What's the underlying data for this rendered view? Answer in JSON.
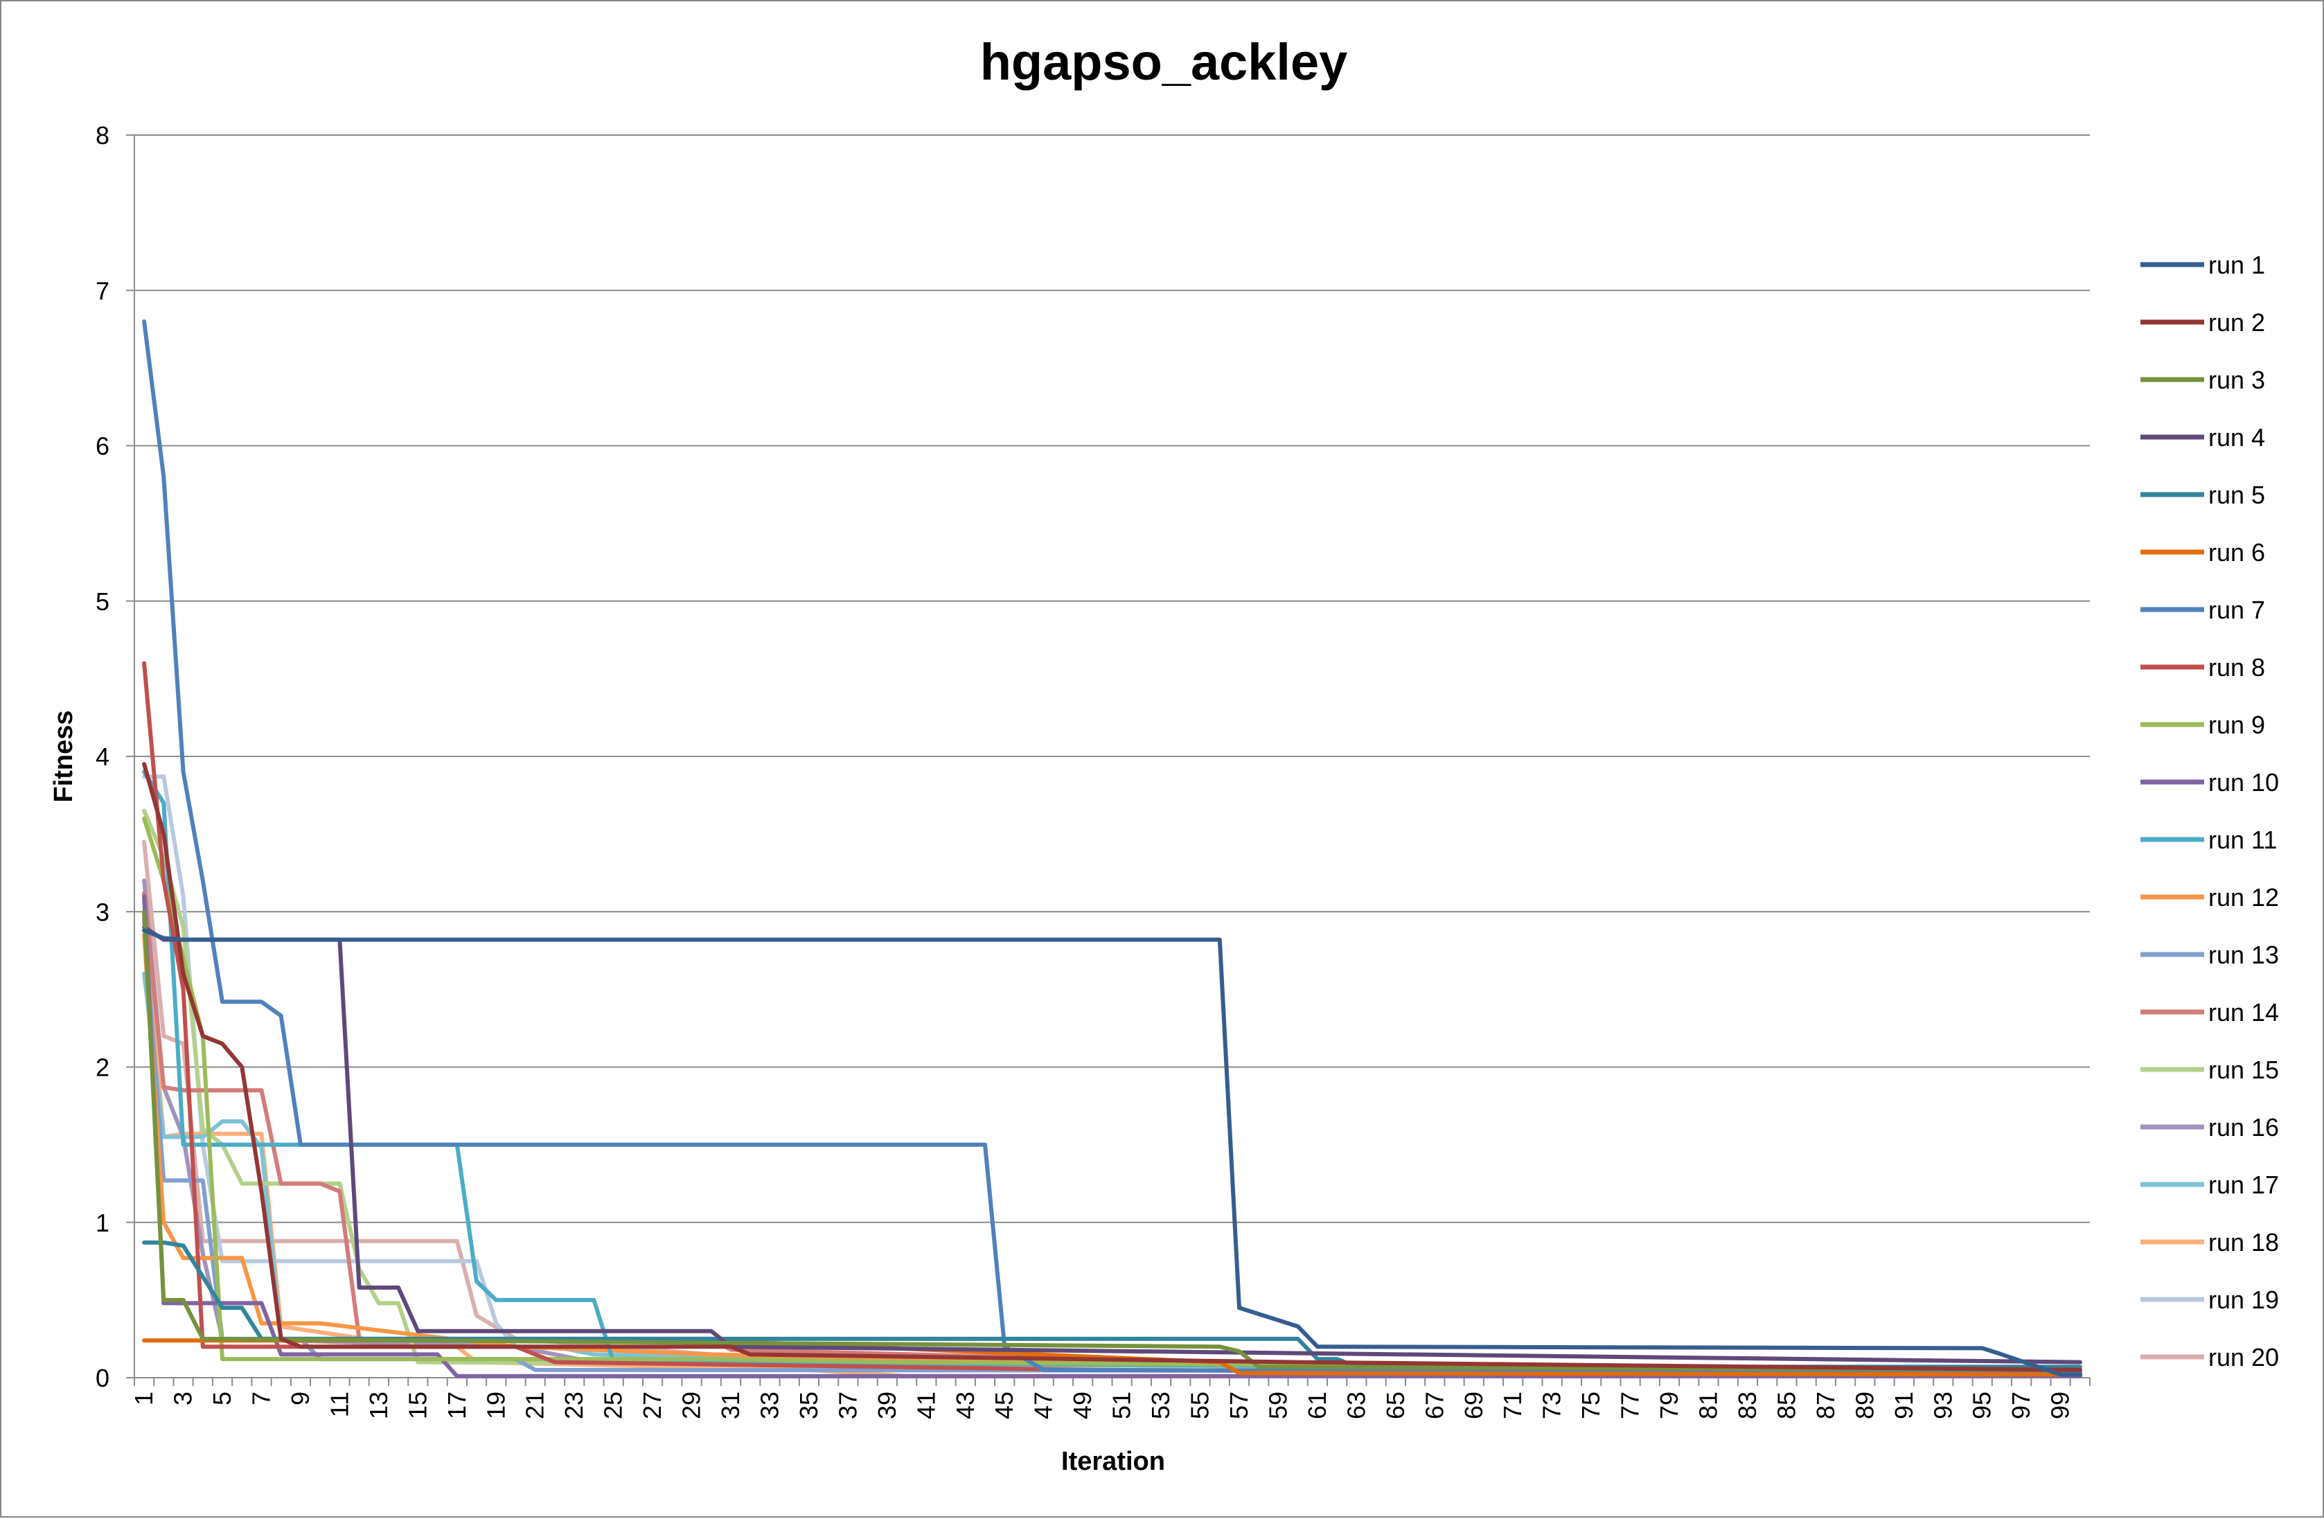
{
  "chart_data": {
    "type": "line",
    "title": "hgapso_ackley",
    "xlabel": "Iteration",
    "ylabel": "Fitness",
    "xlim": [
      1,
      100
    ],
    "ylim": [
      0,
      8
    ],
    "yticks": [
      "0",
      "1",
      "2",
      "3",
      "4",
      "5",
      "6",
      "7",
      "8"
    ],
    "xtick_labels": [
      "1",
      "3",
      "5",
      "7",
      "9",
      "11",
      "13",
      "15",
      "17",
      "19",
      "21",
      "23",
      "25",
      "27",
      "29",
      "31",
      "33",
      "35",
      "37",
      "39",
      "41",
      "43",
      "45",
      "47",
      "49",
      "51",
      "53",
      "55",
      "57",
      "59",
      "61",
      "63",
      "65",
      "67",
      "69",
      "71",
      "73",
      "75",
      "77",
      "79",
      "81",
      "83",
      "85",
      "87",
      "89",
      "91",
      "93",
      "95",
      "97",
      "99"
    ],
    "grid": true,
    "legend_position": "right",
    "series": [
      {
        "name": "run 1",
        "color": "#355e8f",
        "points": [
          [
            1,
            2.88
          ],
          [
            2,
            2.83
          ],
          [
            3,
            2.82
          ],
          [
            35,
            2.82
          ],
          [
            56,
            2.82
          ],
          [
            57,
            0.45
          ],
          [
            60,
            0.33
          ],
          [
            61,
            0.2
          ],
          [
            95,
            0.19
          ],
          [
            96,
            0.15
          ],
          [
            99,
            0.02
          ],
          [
            100,
            0.02
          ]
        ]
      },
      {
        "name": "run 2",
        "color": "#943634",
        "points": [
          [
            1,
            3.95
          ],
          [
            2,
            3.5
          ],
          [
            3,
            2.6
          ],
          [
            4,
            2.2
          ],
          [
            5,
            2.15
          ],
          [
            6,
            2.0
          ],
          [
            7,
            1.2
          ],
          [
            8,
            0.25
          ],
          [
            9,
            0.2
          ],
          [
            31,
            0.2
          ],
          [
            32,
            0.15
          ],
          [
            60,
            0.1
          ],
          [
            100,
            0.05
          ]
        ]
      },
      {
        "name": "run 3",
        "color": "#76923c",
        "points": [
          [
            1,
            3.0
          ],
          [
            2,
            0.5
          ],
          [
            3,
            0.5
          ],
          [
            4,
            0.25
          ],
          [
            56,
            0.2
          ],
          [
            57,
            0.17
          ],
          [
            58,
            0.07
          ],
          [
            100,
            0.05
          ]
        ]
      },
      {
        "name": "run 4",
        "color": "#5f497a",
        "points": [
          [
            1,
            2.9
          ],
          [
            2,
            2.82
          ],
          [
            10,
            2.82
          ],
          [
            11,
            2.82
          ],
          [
            12,
            0.58
          ],
          [
            14,
            0.58
          ],
          [
            15,
            0.3
          ],
          [
            30,
            0.3
          ],
          [
            31,
            0.2
          ],
          [
            100,
            0.1
          ]
        ]
      },
      {
        "name": "run 5",
        "color": "#31859c",
        "points": [
          [
            1,
            0.87
          ],
          [
            2,
            0.87
          ],
          [
            3,
            0.85
          ],
          [
            5,
            0.45
          ],
          [
            6,
            0.45
          ],
          [
            7,
            0.25
          ],
          [
            60,
            0.25
          ],
          [
            61,
            0.12
          ],
          [
            62,
            0.12
          ],
          [
            63,
            0.07
          ],
          [
            100,
            0.07
          ]
        ]
      },
      {
        "name": "run 6",
        "color": "#e36c09",
        "points": [
          [
            1,
            0.24
          ],
          [
            3,
            0.24
          ],
          [
            30,
            0.24
          ],
          [
            56,
            0.1
          ],
          [
            57,
            0.03
          ],
          [
            100,
            0.02
          ]
        ]
      },
      {
        "name": "run 7",
        "color": "#4f81bd",
        "points": [
          [
            1,
            6.8
          ],
          [
            2,
            5.8
          ],
          [
            3,
            3.9
          ],
          [
            4,
            3.2
          ],
          [
            5,
            2.42
          ],
          [
            6,
            2.42
          ],
          [
            7,
            2.42
          ],
          [
            8,
            2.33
          ],
          [
            9,
            1.5
          ],
          [
            10,
            1.5
          ],
          [
            44,
            1.5
          ],
          [
            45,
            0.2
          ],
          [
            47,
            0.05
          ],
          [
            100,
            0.03
          ]
        ]
      },
      {
        "name": "run 8",
        "color": "#c0504d",
        "points": [
          [
            1,
            4.6
          ],
          [
            2,
            3.2
          ],
          [
            3,
            2.5
          ],
          [
            4,
            0.2
          ],
          [
            5,
            0.2
          ],
          [
            10,
            0.2
          ],
          [
            20,
            0.2
          ],
          [
            22,
            0.1
          ],
          [
            50,
            0.05
          ],
          [
            100,
            0.02
          ]
        ]
      },
      {
        "name": "run 9",
        "color": "#9bbb59",
        "points": [
          [
            1,
            3.6
          ],
          [
            2,
            3.2
          ],
          [
            3,
            2.7
          ],
          [
            4,
            2.2
          ],
          [
            5,
            0.12
          ],
          [
            30,
            0.12
          ],
          [
            40,
            0.1
          ],
          [
            100,
            0.05
          ]
        ]
      },
      {
        "name": "run 10",
        "color": "#8064a2",
        "points": [
          [
            1,
            3.1
          ],
          [
            2,
            0.48
          ],
          [
            6,
            0.48
          ],
          [
            7,
            0.48
          ],
          [
            8,
            0.15
          ],
          [
            16,
            0.15
          ],
          [
            17,
            0.01
          ],
          [
            100,
            0.01
          ]
        ]
      },
      {
        "name": "run 11",
        "color": "#4bacc6",
        "points": [
          [
            1,
            3.9
          ],
          [
            2,
            3.7
          ],
          [
            3,
            1.5
          ],
          [
            16,
            1.5
          ],
          [
            17,
            1.5
          ],
          [
            18,
            0.62
          ],
          [
            19,
            0.5
          ],
          [
            23,
            0.5
          ],
          [
            24,
            0.5
          ],
          [
            25,
            0.1
          ],
          [
            100,
            0.05
          ]
        ]
      },
      {
        "name": "run 12",
        "color": "#f79646",
        "points": [
          [
            1,
            2.85
          ],
          [
            2,
            1.0
          ],
          [
            3,
            0.77
          ],
          [
            5,
            0.77
          ],
          [
            6,
            0.77
          ],
          [
            7,
            0.35
          ],
          [
            10,
            0.35
          ],
          [
            20,
            0.2
          ],
          [
            30,
            0.15
          ],
          [
            45,
            0.1
          ],
          [
            100,
            0.05
          ]
        ]
      },
      {
        "name": "run 13",
        "color": "#7f9fcf",
        "points": [
          [
            1,
            2.95
          ],
          [
            2,
            1.27
          ],
          [
            4,
            1.27
          ],
          [
            5,
            0.25
          ],
          [
            9,
            0.25
          ],
          [
            10,
            0.12
          ],
          [
            20,
            0.12
          ],
          [
            21,
            0.05
          ],
          [
            100,
            0.04
          ]
        ]
      },
      {
        "name": "run 14",
        "color": "#d37c7a",
        "points": [
          [
            1,
            3.12
          ],
          [
            2,
            1.87
          ],
          [
            3,
            1.85
          ],
          [
            7,
            1.85
          ],
          [
            8,
            1.25
          ],
          [
            10,
            1.25
          ],
          [
            11,
            1.2
          ],
          [
            12,
            0.25
          ],
          [
            30,
            0.25
          ],
          [
            31,
            0.18
          ],
          [
            56,
            0.1
          ],
          [
            100,
            0.05
          ]
        ]
      },
      {
        "name": "run 15",
        "color": "#b3d18a",
        "points": [
          [
            1,
            3.65
          ],
          [
            2,
            3.35
          ],
          [
            3,
            2.9
          ],
          [
            4,
            1.6
          ],
          [
            5,
            1.5
          ],
          [
            6,
            1.25
          ],
          [
            10,
            1.25
          ],
          [
            11,
            1.25
          ],
          [
            12,
            0.7
          ],
          [
            13,
            0.48
          ],
          [
            14,
            0.48
          ],
          [
            15,
            0.1
          ],
          [
            100,
            0.05
          ]
        ]
      },
      {
        "name": "run 16",
        "color": "#a193bd",
        "points": [
          [
            1,
            3.2
          ],
          [
            2,
            1.87
          ],
          [
            3,
            1.55
          ],
          [
            4,
            0.8
          ],
          [
            5,
            0.25
          ],
          [
            20,
            0.2
          ],
          [
            24,
            0.1
          ],
          [
            100,
            0.04
          ]
        ]
      },
      {
        "name": "run 17",
        "color": "#7dc3d6",
        "points": [
          [
            1,
            2.6
          ],
          [
            2,
            1.55
          ],
          [
            3,
            1.55
          ],
          [
            4,
            1.55
          ],
          [
            5,
            1.65
          ],
          [
            6,
            1.65
          ],
          [
            7,
            1.48
          ],
          [
            8,
            0.25
          ],
          [
            20,
            0.2
          ],
          [
            22,
            0.2
          ],
          [
            24,
            0.15
          ],
          [
            40,
            0.1
          ],
          [
            100,
            0.05
          ]
        ]
      },
      {
        "name": "run 18",
        "color": "#fab07c",
        "points": [
          [
            1,
            3.0
          ],
          [
            2,
            1.55
          ],
          [
            3,
            1.57
          ],
          [
            6,
            1.57
          ],
          [
            7,
            1.57
          ],
          [
            8,
            0.33
          ],
          [
            15,
            0.2
          ],
          [
            17,
            0.2
          ],
          [
            18,
            0.1
          ],
          [
            35,
            0.05
          ],
          [
            40,
            0.01
          ],
          [
            100,
            0.01
          ]
        ]
      },
      {
        "name": "run 19",
        "color": "#b8c9e1",
        "points": [
          [
            1,
            3.87
          ],
          [
            2,
            3.87
          ],
          [
            3,
            3.1
          ],
          [
            4,
            1.5
          ],
          [
            5,
            0.75
          ],
          [
            17,
            0.75
          ],
          [
            18,
            0.75
          ],
          [
            19,
            0.35
          ],
          [
            20,
            0.2
          ],
          [
            30,
            0.15
          ],
          [
            45,
            0.1
          ],
          [
            60,
            0.05
          ],
          [
            100,
            0.05
          ]
        ]
      },
      {
        "name": "run 20",
        "color": "#dbafaf",
        "points": [
          [
            1,
            3.45
          ],
          [
            2,
            2.2
          ],
          [
            3,
            2.15
          ],
          [
            4,
            0.88
          ],
          [
            5,
            0.88
          ],
          [
            16,
            0.88
          ],
          [
            17,
            0.88
          ],
          [
            18,
            0.4
          ],
          [
            20,
            0.25
          ],
          [
            30,
            0.15
          ],
          [
            40,
            0.12
          ],
          [
            50,
            0.08
          ],
          [
            100,
            0.03
          ]
        ]
      }
    ]
  }
}
